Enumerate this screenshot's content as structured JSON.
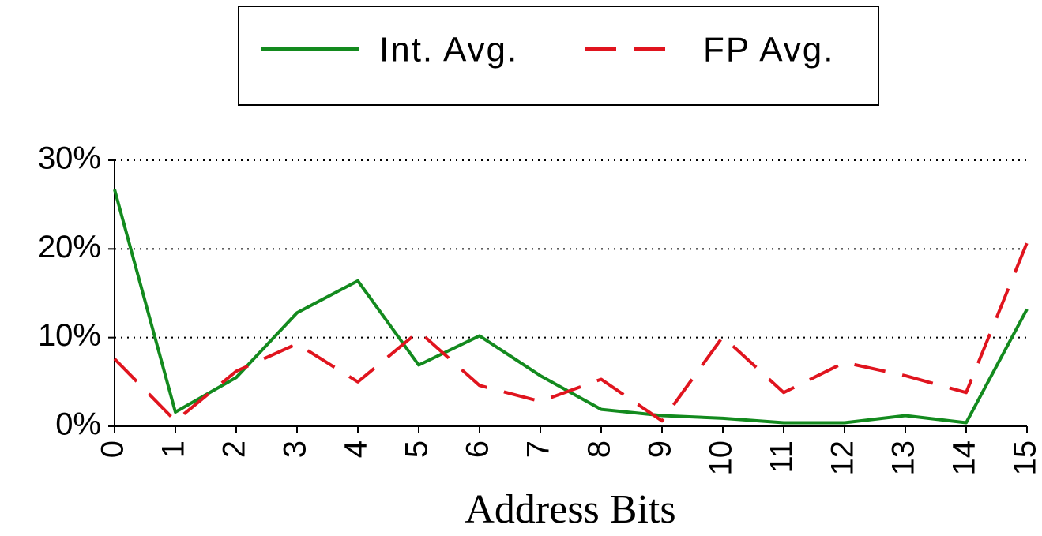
{
  "chart_data": {
    "type": "line",
    "x_label": "Address Bits",
    "categories": [
      "0",
      "1",
      "2",
      "3",
      "4",
      "5",
      "6",
      "7",
      "8",
      "9",
      "10",
      "11",
      "12",
      "13",
      "14",
      "15"
    ],
    "series": [
      {
        "name": "Int. Avg.",
        "color": "#138a1e",
        "dash": false,
        "values": [
          26.7,
          1.6,
          5.5,
          12.8,
          16.4,
          6.9,
          10.2,
          5.7,
          1.9,
          1.2,
          0.9,
          0.4,
          0.4,
          1.2,
          0.4,
          13.2
        ]
      },
      {
        "name": "FP Avg.",
        "color": "#e0141e",
        "dash": true,
        "values": [
          7.6,
          0.6,
          6.2,
          9.3,
          5.0,
          10.7,
          4.6,
          2.8,
          5.3,
          0.6,
          10.1,
          3.8,
          7.2,
          5.7,
          3.8,
          20.7
        ]
      }
    ],
    "ylim": [
      0,
      30
    ],
    "yticks": [
      {
        "value": 0,
        "label": "0%"
      },
      {
        "value": 10,
        "label": "10%"
      },
      {
        "value": 20,
        "label": "20%"
      },
      {
        "value": 30,
        "label": "30%"
      }
    ],
    "grid": true,
    "legend": "top"
  }
}
